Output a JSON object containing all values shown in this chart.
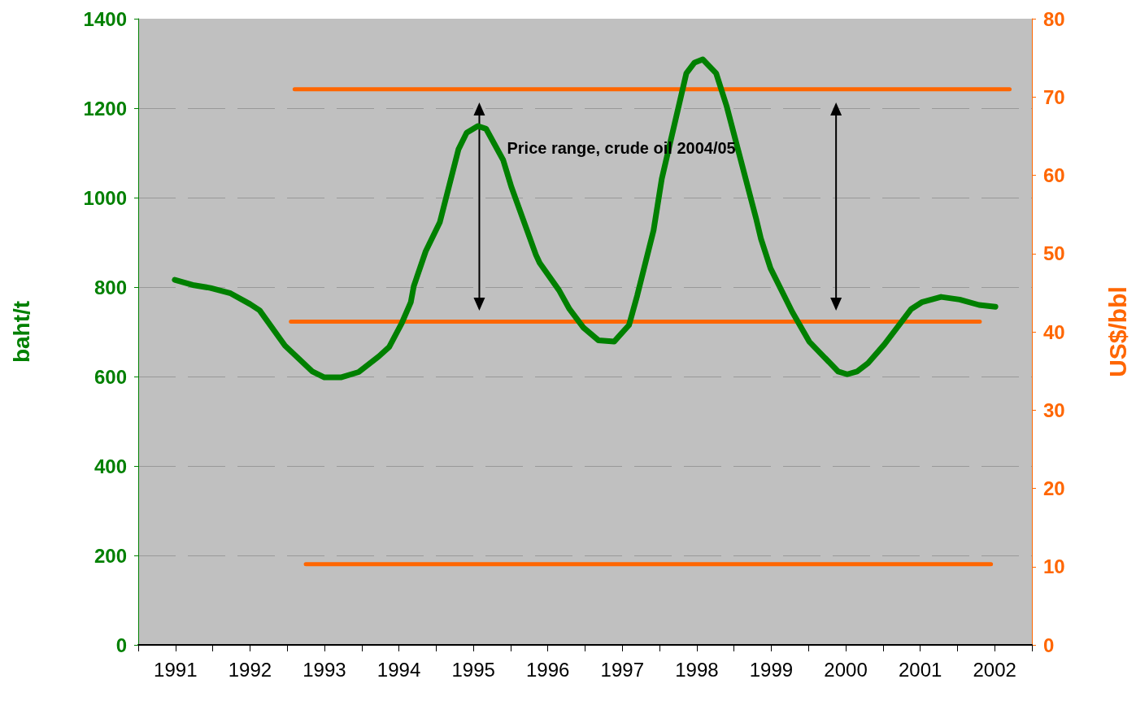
{
  "chart_data": {
    "type": "line",
    "ylabel": "baht/t",
    "y2label": "US$/bbl",
    "xlim": [
      1991,
      2003
    ],
    "xticks": [
      {
        "value": 1991,
        "label": null
      },
      {
        "value": 1991.5,
        "label": "1991"
      },
      {
        "value": 1992,
        "label": null
      },
      {
        "value": 1992.5,
        "label": "1992"
      },
      {
        "value": 1993,
        "label": null
      },
      {
        "value": 1993.5,
        "label": "1993"
      },
      {
        "value": 1994,
        "label": null
      },
      {
        "value": 1994.5,
        "label": "1994"
      },
      {
        "value": 1995,
        "label": null
      },
      {
        "value": 1995.5,
        "label": "1995"
      },
      {
        "value": 1996,
        "label": null
      },
      {
        "value": 1996.5,
        "label": "1996"
      },
      {
        "value": 1997,
        "label": null
      },
      {
        "value": 1997.5,
        "label": "1997"
      },
      {
        "value": 1998,
        "label": null
      },
      {
        "value": 1998.5,
        "label": "1998"
      },
      {
        "value": 1999,
        "label": null
      },
      {
        "value": 1999.5,
        "label": "1999"
      },
      {
        "value": 2000,
        "label": null
      },
      {
        "value": 2000.5,
        "label": "2000"
      },
      {
        "value": 2001,
        "label": null
      },
      {
        "value": 2001.5,
        "label": "2001"
      },
      {
        "value": 2002,
        "label": null
      },
      {
        "value": 2002.5,
        "label": "2002"
      },
      {
        "value": 2003,
        "label": null
      }
    ],
    "ylim": [
      0,
      1400
    ],
    "yticks": [
      0,
      200,
      400,
      600,
      800,
      1000,
      1200,
      1400
    ],
    "y2lim": [
      0,
      80
    ],
    "y2ticks": [
      0,
      10,
      20,
      30,
      40,
      50,
      60,
      70,
      80
    ],
    "grid": "y",
    "marker": "none",
    "line_style": "solid",
    "annotations": [
      "Price range, crude oil 2004/05"
    ],
    "series": [
      {
        "color": "#008000",
        "x": [
          1991.49,
          1991.75,
          1991.97,
          1992.24,
          1992.5,
          1992.63,
          1992.97,
          1993.34,
          1993.5,
          1993.72,
          1993.96,
          1994.23,
          1994.37,
          1994.54,
          1994.66,
          1994.7,
          1994.86,
          1995.05,
          1995.3,
          1995.41,
          1995.56,
          1995.67,
          1995.9,
          1996.01,
          1996.34,
          1996.39,
          1996.65,
          1996.79,
          1996.98,
          1997.18,
          1997.39,
          1997.59,
          1997.7,
          1997.92,
          1998.03,
          1998.36,
          1998.47,
          1998.58,
          1998.76,
          1998.9,
          1999.3,
          1999.36,
          1999.49,
          1999.78,
          2000.01,
          2000.4,
          2000.52,
          2000.65,
          2000.8,
          2001.02,
          2001.38,
          2001.52,
          2001.78,
          2002.03,
          2002.29,
          2002.51
        ],
        "values": [
          816,
          804,
          798,
          786,
          762,
          748,
          669,
          611,
          598,
          598,
          610,
          645,
          666,
          720,
          766,
          802,
          880,
          945,
          1108,
          1145,
          1160,
          1154,
          1084,
          1024,
          872,
          854,
          793,
          751,
          709,
          681,
          678,
          715,
          781,
          927,
          1042,
          1278,
          1302,
          1309,
          1278,
          1205,
          951,
          909,
          842,
          745,
          678,
          611,
          605,
          611,
          630,
          672,
          751,
          766,
          778,
          772,
          760,
          756
        ]
      },
      {
        "color": "#ff6600",
        "axis": "y2",
        "x": [
          1993.1,
          2002.7
        ],
        "values": [
          71,
          71
        ]
      },
      {
        "color": "#ff6600",
        "axis": "y2",
        "x": [
          1993.05,
          2002.3
        ],
        "values": [
          41.3,
          41.3
        ]
      },
      {
        "color": "#ff6600",
        "axis": "y2",
        "x": [
          1993.25,
          2002.45
        ],
        "values": [
          10.3,
          10.3
        ]
      }
    ]
  }
}
